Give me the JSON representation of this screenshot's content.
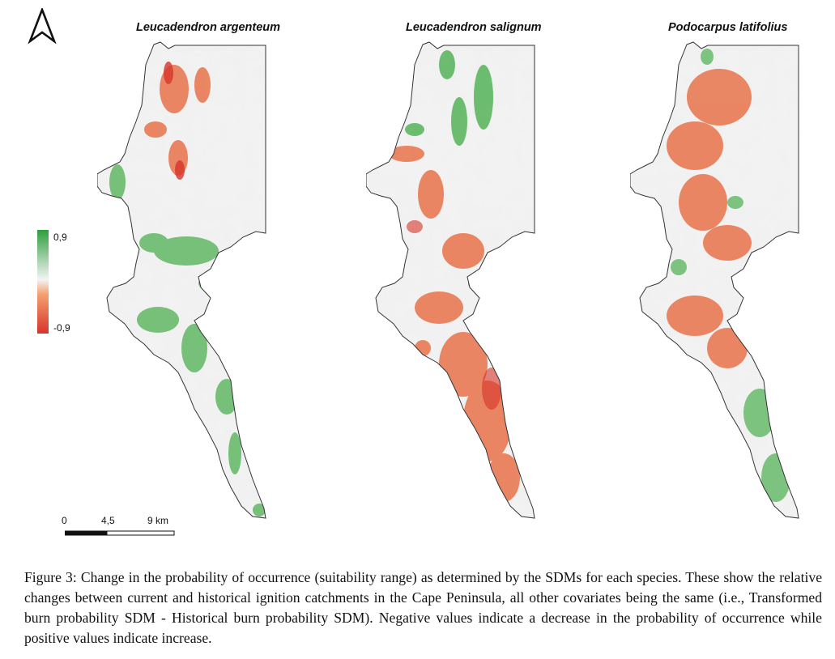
{
  "maps": [
    {
      "title": "Leucadendron argenteum"
    },
    {
      "title": "Leucadendron salignum"
    },
    {
      "title": "Podocarpus latifolius"
    }
  ],
  "north_arrow": {
    "icon": "north-arrow-icon"
  },
  "legend": {
    "max_label": "0,9",
    "min_label": "-0,9",
    "colors": {
      "positive": "#2e9e3c",
      "neutral": "#f4f4f4",
      "negative": "#d7342a"
    }
  },
  "scale_bar": {
    "labels": [
      "0",
      "4,5",
      "9 km"
    ]
  },
  "caption": "Figure 3: Change in the probability of occurrence (suitability range) as determined by the SDMs for each species. These show the relative changes between current and historical ignition catchments in the Cape Peninsula, all other covariates being the same (i.e., Transformed burn probability SDM - Historical burn probability SDM). Negative values indicate a decrease in the probability of occurrence while positive values indicate increase."
}
